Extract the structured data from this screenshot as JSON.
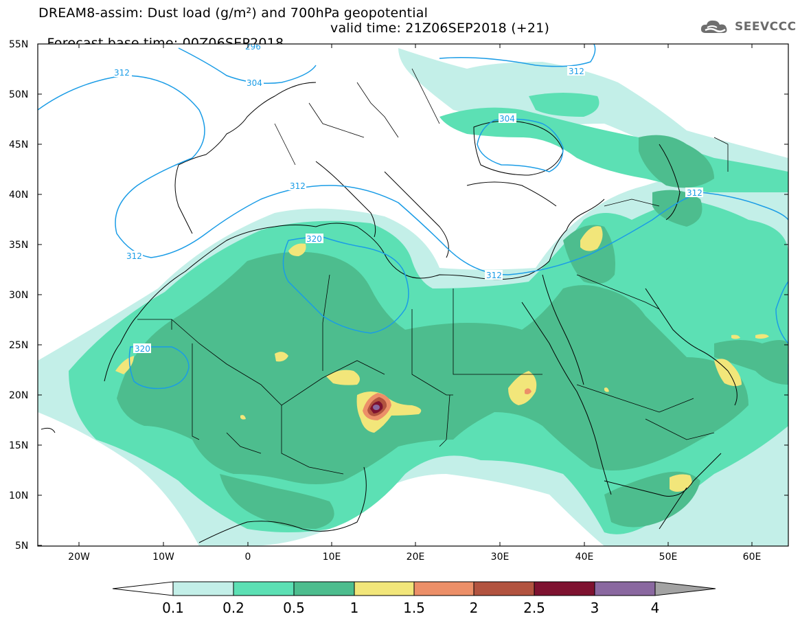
{
  "header": {
    "title_line1": "DREAM8-assim: Dust load (g/m²) and 700hPa geopotential",
    "title_line2_base": "Forecast base time: 00Z06SEP2018",
    "title_line2_valid": "valid time: 21Z06SEP2018 (+21)"
  },
  "logo": {
    "text": "SEEVCCC",
    "icon": "cloud-icon"
  },
  "map": {
    "lat_labels": [
      "55N",
      "50N",
      "45N",
      "40N",
      "35N",
      "30N",
      "25N",
      "20N",
      "15N",
      "10N",
      "5N"
    ],
    "lon_labels": [
      "20W",
      "10W",
      "0",
      "10E",
      "20E",
      "30E",
      "40E",
      "50E",
      "60E"
    ],
    "contour_labels": [
      "296",
      "312",
      "304",
      "312",
      "304",
      "312",
      "320",
      "312",
      "312",
      "312",
      "320"
    ],
    "colors": {
      "level_0_1": "#c3efe8",
      "level_0_2": "#5ce0b4",
      "level_0_5": "#4dbd8e",
      "level_1": "#f2e67a",
      "level_1_5": "#ec8f68",
      "level_2": "#b2533f",
      "level_2_5": "#7e1230",
      "level_3": "#8a68a0",
      "level_4": "#a3a3a3",
      "geopotential": "#1a9ce6",
      "coastline": "#000000"
    }
  },
  "colorbar": {
    "labels": [
      "0.1",
      "0.2",
      "0.5",
      "1",
      "1.5",
      "2",
      "2.5",
      "3",
      "4"
    ],
    "colors": [
      "#c3efe8",
      "#5ce0b4",
      "#4dbd8e",
      "#f2e67a",
      "#ec8f68",
      "#b2533f",
      "#7e1230",
      "#8a68a0"
    ],
    "low_end_color": "#ffffff",
    "high_end_color": "#a3a3a3"
  }
}
